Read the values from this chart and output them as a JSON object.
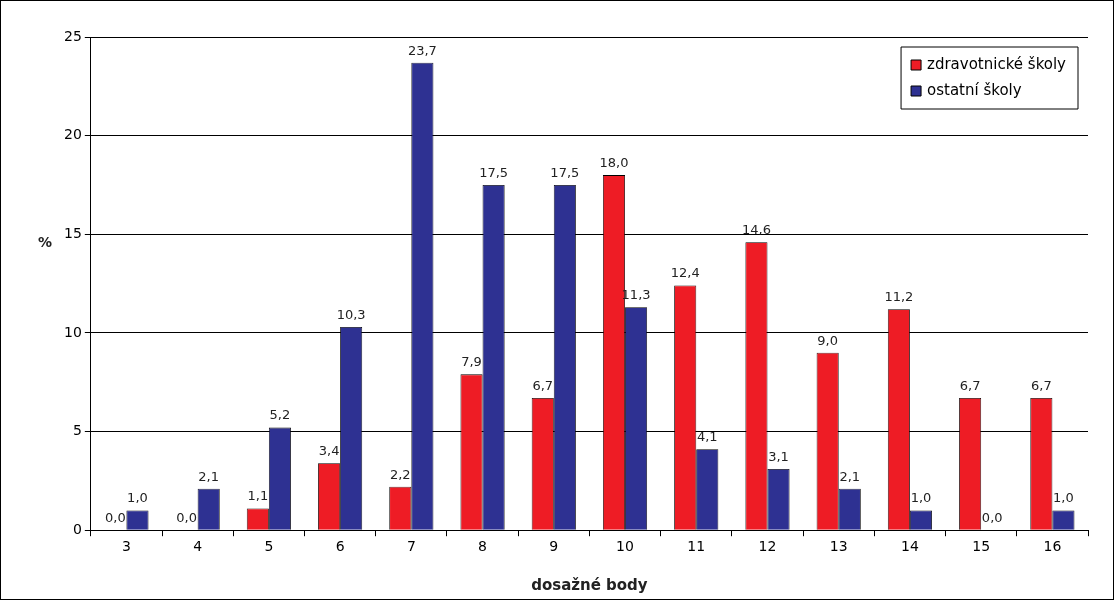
{
  "chart_data": {
    "type": "bar",
    "xlabel": "dosažné body",
    "ylabel": "%",
    "categories": [
      "3",
      "4",
      "5",
      "6",
      "7",
      "8",
      "9",
      "10",
      "11",
      "12",
      "13",
      "14",
      "15",
      "16"
    ],
    "series": [
      {
        "name": "zdravotnické školy",
        "color": "#ee1c25",
        "values": [
          0.0,
          0.0,
          1.1,
          3.4,
          2.2,
          7.9,
          6.7,
          18.0,
          12.4,
          14.6,
          9.0,
          11.2,
          6.7,
          6.7
        ],
        "value_labels": [
          "0,0",
          "0,0",
          "1,1",
          "3,4",
          "2,2",
          "7,9",
          "6,7",
          "18,0",
          "12,4",
          "14,6",
          "9,0",
          "11,2",
          "6,7",
          "6,7"
        ]
      },
      {
        "name": "ostatní školy",
        "color": "#2e3192",
        "values": [
          1.0,
          2.1,
          5.2,
          10.3,
          23.7,
          17.5,
          17.5,
          11.3,
          4.1,
          3.1,
          2.1,
          1.0,
          0.0,
          1.0
        ],
        "value_labels": [
          "1,0",
          "2,1",
          "5,2",
          "10,3",
          "23,7",
          "17,5",
          "17,5",
          "11,3",
          "4,1",
          "3,1",
          "2,1",
          "1,0",
          "0,0",
          "1,0"
        ]
      }
    ],
    "ylim": [
      0,
      25
    ],
    "yticks": [
      0,
      5,
      10,
      15,
      20,
      25
    ],
    "grid": "y",
    "legend": "top right"
  }
}
